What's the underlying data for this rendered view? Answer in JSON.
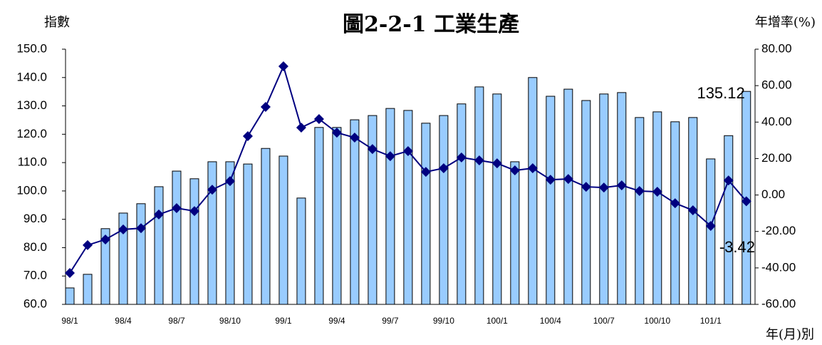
{
  "chart_data": {
    "type": "bar",
    "title": "圖2-2-1 工業生產",
    "y_label": "指數",
    "y2_label": "年增率(%)",
    "x_label": "年(月)別",
    "categories": [
      "98/1",
      null,
      null,
      "98/4",
      null,
      null,
      "98/7",
      null,
      null,
      "98/10",
      null,
      null,
      "99/1",
      null,
      null,
      "99/4",
      null,
      null,
      "99/7",
      null,
      null,
      "99/10",
      null,
      null,
      "100/1",
      null,
      null,
      "100/4",
      null,
      null,
      "100/7",
      null,
      null,
      "100/10",
      null,
      null,
      "101/1",
      null,
      null
    ],
    "series": [
      {
        "type": "bar",
        "color": "#99ccff",
        "values": [
          65.8,
          70.6,
          86.7,
          92.2,
          95.5,
          101.5,
          107.0,
          104.3,
          110.3,
          110.3,
          109.5,
          115.0,
          112.3,
          97.5,
          122.4,
          122.4,
          125.1,
          126.6,
          129.1,
          128.4,
          123.9,
          126.6,
          130.7,
          136.7,
          134.2,
          110.3,
          140.0,
          133.4,
          135.9,
          131.9,
          134.2,
          134.7,
          125.9,
          127.9,
          124.4,
          125.9,
          111.3,
          119.5,
          135.12
        ]
      },
      {
        "type": "line",
        "axis": "y2",
        "color": "#000080",
        "values": [
          -42.8,
          -27.5,
          -24.4,
          -18.9,
          -18.2,
          -10.7,
          -7.2,
          -8.8,
          2.9,
          7.6,
          32.3,
          48.3,
          70.6,
          37.0,
          41.7,
          34.2,
          31.5,
          25.2,
          21.3,
          24.1,
          12.7,
          14.7,
          20.6,
          19.0,
          17.4,
          13.5,
          14.7,
          8.4,
          8.8,
          4.5,
          4.1,
          5.3,
          2.2,
          1.8,
          -4.5,
          -8.4,
          -17.0,
          8.0,
          -3.42
        ]
      }
    ],
    "ylim": [
      60,
      150
    ],
    "yticks": [
      {
        "value": 60,
        "label": "60.0"
      },
      {
        "value": 70,
        "label": "70.0"
      },
      {
        "value": 80,
        "label": "80.0"
      },
      {
        "value": 90,
        "label": "90.0"
      },
      {
        "value": 100,
        "label": "100.0"
      },
      {
        "value": 110,
        "label": "110.0"
      },
      {
        "value": 120,
        "label": "120.0"
      },
      {
        "value": 130,
        "label": "130.0"
      },
      {
        "value": 140,
        "label": "140.0"
      },
      {
        "value": 150,
        "label": "150.0"
      }
    ],
    "y2lim": [
      -60,
      80
    ],
    "y2ticks": [
      {
        "value": -60,
        "label": "-60.00"
      },
      {
        "value": -40,
        "label": "-40.00"
      },
      {
        "value": -20,
        "label": "-20.00"
      },
      {
        "value": 0,
        "label": "0.00"
      },
      {
        "value": 20,
        "label": "20.00"
      },
      {
        "value": 40,
        "label": "40.00"
      },
      {
        "value": 60,
        "label": "60.00"
      },
      {
        "value": 80,
        "label": "80.00"
      }
    ],
    "grid": false
  }
}
